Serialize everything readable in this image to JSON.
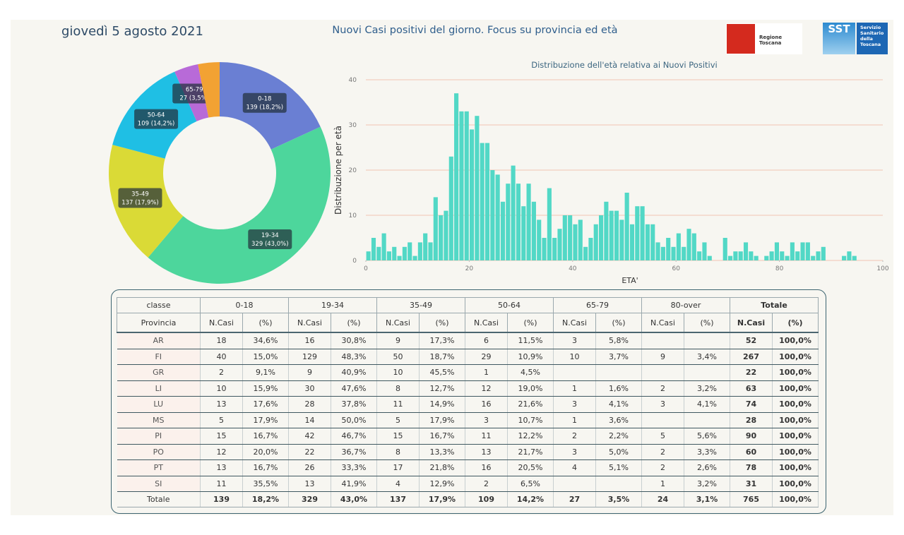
{
  "header": {
    "date": "giovedì 5 agosto 2021",
    "title": "Nuovi Casi positivi del giorno. Focus su provincia ed età",
    "logo_region": "Regione Toscana",
    "logo_sst": "SST",
    "logo_sst_lines": [
      "Servizio",
      "Sanitario",
      "della",
      "Toscana"
    ]
  },
  "chart_data": [
    {
      "type": "pie",
      "donut": true,
      "categories": [
        "0-18",
        "19-34",
        "35-49",
        "50-64",
        "65-79",
        null
      ],
      "values": [
        139,
        329,
        137,
        109,
        27,
        24
      ],
      "value_labels": [
        "139 (18,2%)",
        "329 (43,0%)",
        "137 (17,9%)",
        "109 (14,2%)",
        "27 (3,5%)",
        null
      ],
      "colors": [
        "#6a7fd3",
        "#4dd69c",
        "#dada36",
        "#1fbfe4",
        "#b86ad8",
        "#f2a233"
      ]
    },
    {
      "type": "histogram",
      "title": "Distribuzione dell'età relativa ai Nuovi Positivi",
      "x_label": "ETA'",
      "y_label": "Distribuzione per età",
      "color": "#52d8c6",
      "grid": true,
      "bins": [
        0,
        1,
        2,
        3,
        4,
        5,
        6,
        7,
        8,
        9,
        10,
        11,
        12,
        13,
        14,
        15,
        16,
        17,
        18,
        19,
        20,
        21,
        22,
        23,
        24,
        25,
        26,
        27,
        28,
        29,
        30,
        31,
        32,
        33,
        34,
        35,
        36,
        37,
        38,
        39,
        40,
        41,
        42,
        43,
        44,
        45,
        46,
        47,
        48,
        49,
        50,
        51,
        52,
        53,
        54,
        55,
        56,
        57,
        58,
        59,
        60,
        61,
        62,
        63,
        64,
        65,
        66,
        67,
        68,
        69,
        70,
        71,
        72,
        73,
        74,
        75,
        76,
        77,
        78,
        79,
        80,
        81,
        82,
        83,
        84,
        85,
        86,
        87,
        88,
        89,
        90,
        91,
        92,
        93,
        94,
        95
      ],
      "counts": [
        2,
        5,
        3,
        6,
        2,
        3,
        1,
        3,
        4,
        1,
        4,
        6,
        4,
        14,
        10,
        11,
        23,
        37,
        33,
        33,
        29,
        32,
        26,
        26,
        20,
        19,
        13,
        17,
        21,
        17,
        12,
        17,
        13,
        9,
        5,
        16,
        5,
        7,
        10,
        10,
        8,
        9,
        3,
        5,
        8,
        10,
        13,
        11,
        11,
        9,
        15,
        8,
        12,
        12,
        8,
        8,
        4,
        3,
        5,
        3,
        6,
        3,
        7,
        6,
        2,
        4,
        1,
        0,
        0,
        5,
        1,
        2,
        2,
        4,
        2,
        1,
        0,
        1,
        2,
        4,
        2,
        1,
        4,
        2,
        4,
        4,
        1,
        2,
        3,
        0,
        0,
        0,
        1,
        2,
        1
      ],
      "xlim": [
        0,
        100
      ],
      "xticks": [
        0,
        20,
        40,
        60,
        80,
        100
      ],
      "ylim": [
        0,
        40
      ],
      "yticks": [
        0,
        10,
        20,
        30,
        40
      ]
    }
  ],
  "table": {
    "header1": [
      "classe",
      "0-18",
      "19-34",
      "35-49",
      "50-64",
      "65-79",
      "80-over",
      "Totale"
    ],
    "header2": [
      "Provincia",
      "N.Casi",
      "(%)",
      "N.Casi",
      "(%)",
      "N.Casi",
      "(%)",
      "N.Casi",
      "(%)",
      "N.Casi",
      "(%)",
      "N.Casi",
      "(%)",
      "N.Casi",
      "(%)"
    ],
    "rows": [
      [
        "AR",
        "18",
        "34,6%",
        "16",
        "30,8%",
        "9",
        "17,3%",
        "6",
        "11,5%",
        "3",
        "5,8%",
        null,
        null,
        "52",
        "100,0%"
      ],
      [
        "FI",
        "40",
        "15,0%",
        "129",
        "48,3%",
        "50",
        "18,7%",
        "29",
        "10,9%",
        "10",
        "3,7%",
        "9",
        "3,4%",
        "267",
        "100,0%"
      ],
      [
        "GR",
        "2",
        "9,1%",
        "9",
        "40,9%",
        "10",
        "45,5%",
        "1",
        "4,5%",
        null,
        null,
        null,
        null,
        "22",
        "100,0%"
      ],
      [
        "LI",
        "10",
        "15,9%",
        "30",
        "47,6%",
        "8",
        "12,7%",
        "12",
        "19,0%",
        "1",
        "1,6%",
        "2",
        "3,2%",
        "63",
        "100,0%"
      ],
      [
        "LU",
        "13",
        "17,6%",
        "28",
        "37,8%",
        "11",
        "14,9%",
        "16",
        "21,6%",
        "3",
        "4,1%",
        "3",
        "4,1%",
        "74",
        "100,0%"
      ],
      [
        "MS",
        "5",
        "17,9%",
        "14",
        "50,0%",
        "5",
        "17,9%",
        "3",
        "10,7%",
        "1",
        "3,6%",
        null,
        null,
        "28",
        "100,0%"
      ],
      [
        "PI",
        "15",
        "16,7%",
        "42",
        "46,7%",
        "15",
        "16,7%",
        "11",
        "12,2%",
        "2",
        "2,2%",
        "5",
        "5,6%",
        "90",
        "100,0%"
      ],
      [
        "PO",
        "12",
        "20,0%",
        "22",
        "36,7%",
        "8",
        "13,3%",
        "13",
        "21,7%",
        "3",
        "5,0%",
        "2",
        "3,3%",
        "60",
        "100,0%"
      ],
      [
        "PT",
        "13",
        "16,7%",
        "26",
        "33,3%",
        "17",
        "21,8%",
        "16",
        "20,5%",
        "4",
        "5,1%",
        "2",
        "2,6%",
        "78",
        "100,0%"
      ],
      [
        "SI",
        "11",
        "35,5%",
        "13",
        "41,9%",
        "4",
        "12,9%",
        "2",
        "6,5%",
        null,
        null,
        "1",
        "3,2%",
        "31",
        "100,0%"
      ]
    ],
    "total": [
      "Totale",
      "139",
      "18,2%",
      "329",
      "43,0%",
      "137",
      "17,9%",
      "109",
      "14,2%",
      "27",
      "3,5%",
      "24",
      "3,1%",
      "765",
      "100,0%"
    ]
  }
}
